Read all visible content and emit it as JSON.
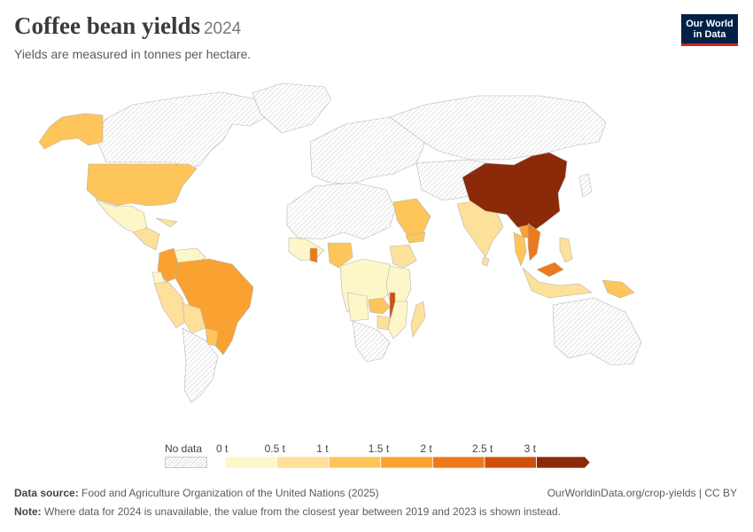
{
  "header": {
    "title": "Coffee bean yields",
    "year": "2024",
    "subtitle": "Yields are measured in tonnes per hectare."
  },
  "logo": {
    "line1": "Our World",
    "line2": "in Data"
  },
  "legend": {
    "no_data_label": "No data",
    "ticks": [
      {
        "label": "0 t",
        "value": 0
      },
      {
        "label": "0.5 t",
        "value": 0.5
      },
      {
        "label": "1 t",
        "value": 1
      },
      {
        "label": "1.5 t",
        "value": 1.5
      },
      {
        "label": "2 t",
        "value": 2
      },
      {
        "label": "2.5 t",
        "value": 2.5
      },
      {
        "label": "3 t",
        "value": 3
      }
    ],
    "bins": [
      {
        "from": 0,
        "to": 0.5,
        "color": "#fdf6c8"
      },
      {
        "from": 0.5,
        "to": 1,
        "color": "#fde19a"
      },
      {
        "from": 1,
        "to": 1.5,
        "color": "#fdc55a"
      },
      {
        "from": 1.5,
        "to": 2,
        "color": "#f9a232"
      },
      {
        "from": 2,
        "to": 2.5,
        "color": "#ec7a1c"
      },
      {
        "from": 2.5,
        "to": 3,
        "color": "#cf4f0c"
      },
      {
        "from": 3,
        "to": null,
        "color": "#8a2a08"
      }
    ]
  },
  "colors": {
    "no_data_fill": "#f0f0f0",
    "border": "#b5b5b5"
  },
  "map_regions": [
    {
      "name": "Canada",
      "bin": null
    },
    {
      "name": "Greenland",
      "bin": null
    },
    {
      "name": "Alaska",
      "bin": 2
    },
    {
      "name": "United States",
      "bin": 2
    },
    {
      "name": "Mexico",
      "bin": 0
    },
    {
      "name": "Central America",
      "bin": 1
    },
    {
      "name": "Cuba",
      "bin": 1
    },
    {
      "name": "Venezuela",
      "bin": 0
    },
    {
      "name": "Colombia",
      "bin": 3
    },
    {
      "name": "Ecuador",
      "bin": 0
    },
    {
      "name": "Peru",
      "bin": 1
    },
    {
      "name": "Brazil",
      "bin": 3
    },
    {
      "name": "Bolivia",
      "bin": 1
    },
    {
      "name": "Paraguay",
      "bin": 2
    },
    {
      "name": "Argentina",
      "bin": null
    },
    {
      "name": "Europe",
      "bin": null
    },
    {
      "name": "Russia",
      "bin": null
    },
    {
      "name": "North Africa",
      "bin": null
    },
    {
      "name": "Saudi Arabia",
      "bin": 2
    },
    {
      "name": "Yemen",
      "bin": 2
    },
    {
      "name": "West Africa",
      "bin": 0
    },
    {
      "name": "Ghana",
      "bin": 4
    },
    {
      "name": "Nigeria",
      "bin": 2
    },
    {
      "name": "Ethiopia",
      "bin": 1
    },
    {
      "name": "Central Africa",
      "bin": 0
    },
    {
      "name": "Kenya / Tanzania",
      "bin": 0
    },
    {
      "name": "Zambia",
      "bin": 2
    },
    {
      "name": "Malawi",
      "bin": 5
    },
    {
      "name": "Angola",
      "bin": 0
    },
    {
      "name": "Mozambique",
      "bin": 0
    },
    {
      "name": "Zimbabwe",
      "bin": 1
    },
    {
      "name": "Madagascar",
      "bin": 1
    },
    {
      "name": "Southern Africa",
      "bin": null
    },
    {
      "name": "Middle East / Central Asia",
      "bin": null
    },
    {
      "name": "India",
      "bin": 1
    },
    {
      "name": "Sri Lanka",
      "bin": 1
    },
    {
      "name": "China",
      "bin": 6
    },
    {
      "name": "Laos",
      "bin": 3
    },
    {
      "name": "Thailand",
      "bin": 2
    },
    {
      "name": "Vietnam",
      "bin": 4
    },
    {
      "name": "Philippines",
      "bin": 1
    },
    {
      "name": "Malaysia",
      "bin": 4
    },
    {
      "name": "Indonesia",
      "bin": 1
    },
    {
      "name": "Papua New Guinea",
      "bin": 2
    },
    {
      "name": "Australia",
      "bin": null
    },
    {
      "name": "Japan",
      "bin": null
    }
  ],
  "footer": {
    "source_label": "Data source:",
    "source_text": "Food and Agriculture Organization of the United Nations (2025)",
    "url": "OurWorldinData.org/crop-yields | CC BY",
    "note_label": "Note:",
    "note_text": "Where data for 2024 is unavailable, the value from the closest year between 2019 and 2023 is shown instead."
  }
}
